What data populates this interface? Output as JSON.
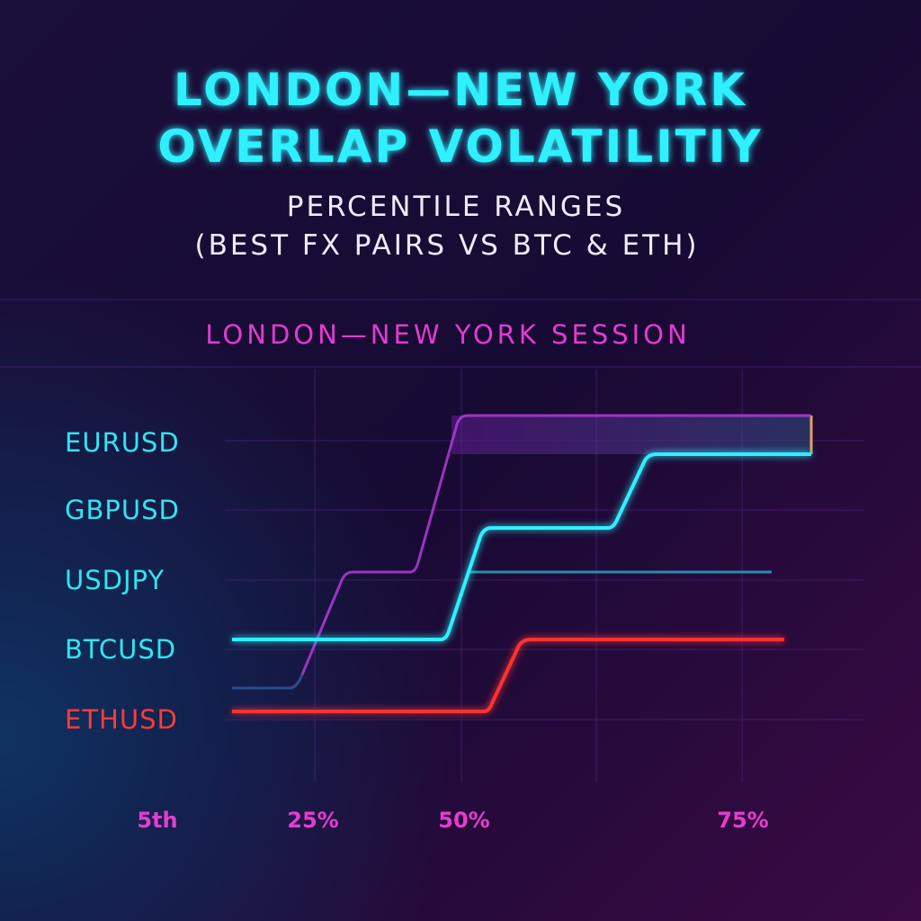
{
  "header": {
    "title": [
      "LONDON—NEW YORK",
      "OVERLAP VOLATILITIY"
    ],
    "subtitle": [
      "PERCENTILE RANGES",
      "(BEST FX PAIRS VS BTC & ETH)"
    ]
  },
  "section": {
    "label": "LONDON—NEW YORK SESSION"
  },
  "rows": [
    "EURUSD",
    "GBPUSD",
    "USDJPY",
    "BTCUSD",
    "ETHUSD"
  ],
  "axis_labels": [
    "5th",
    "25%",
    "50%",
    "75%"
  ]
}
